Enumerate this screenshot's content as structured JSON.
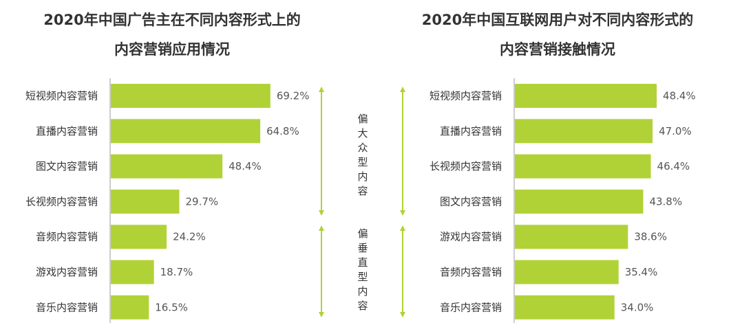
{
  "colors": {
    "bar": "#b1d236",
    "arrow": "#b1d236",
    "axis": "#999999"
  },
  "chart_data": [
    {
      "type": "bar",
      "orientation": "horizontal",
      "title_lines": [
        "2020年中国广告主在不同内容形式上的",
        "内容营销应用情况"
      ],
      "categories": [
        "短视频内容营销",
        "直播内容营销",
        "图文内容营销",
        "长视频内容营销",
        "音频内容营销",
        "游戏内容营销",
        "音乐内容营销"
      ],
      "values": [
        69.2,
        64.8,
        48.4,
        29.7,
        24.2,
        18.7,
        16.5
      ],
      "value_labels": [
        "69.2%",
        "64.8%",
        "48.4%",
        "29.7%",
        "24.2%",
        "18.7%",
        "16.5%"
      ],
      "xlim": [
        0,
        100
      ],
      "group_labels": [
        "偏大众型内容",
        "偏垂直型内容"
      ]
    },
    {
      "type": "bar",
      "orientation": "horizontal",
      "title_lines": [
        "2020年中国互联网用户对不同内容形式的",
        "内容营销接触情况"
      ],
      "categories": [
        "短视频内容营销",
        "直播内容营销",
        "长视频内容营销",
        "图文内容营销",
        "游戏内容营销",
        "音频内容营销",
        "音乐内容营销"
      ],
      "values": [
        48.4,
        47.0,
        46.4,
        43.8,
        38.6,
        35.4,
        34.0
      ],
      "value_labels": [
        "48.4%",
        "47.0%",
        "46.4%",
        "43.8%",
        "38.6%",
        "35.4%",
        "34.0%"
      ],
      "xlim": [
        0,
        70
      ]
    }
  ]
}
